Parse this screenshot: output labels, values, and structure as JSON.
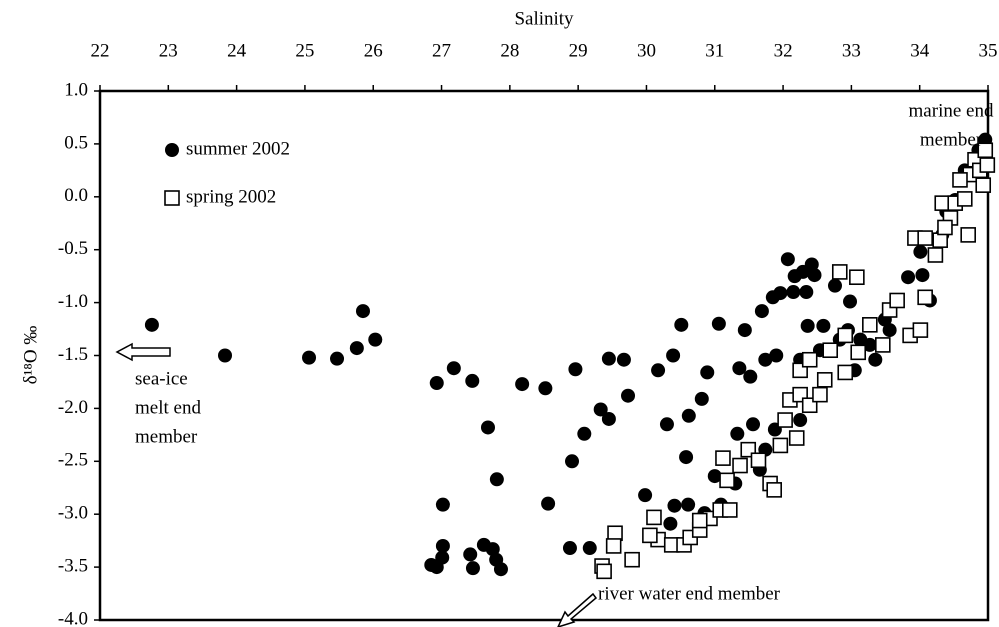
{
  "chart_data": {
    "type": "scatter",
    "x_label": "Salinity",
    "y_label": "δ¹⁸O ‰",
    "xlim": [
      22,
      35
    ],
    "xticks": [
      22,
      23,
      24,
      25,
      26,
      27,
      28,
      29,
      30,
      31,
      32,
      33,
      34,
      35
    ],
    "ylim": [
      -4,
      1
    ],
    "yticks": [
      {
        "value": 1,
        "label": "1.0"
      },
      0.5,
      {
        "value": 0,
        "label": "0.0"
      },
      -0.5,
      {
        "value": -1,
        "label": "-1.0"
      },
      -1.5,
      {
        "value": -2,
        "label": "-2.0"
      },
      -2.5,
      {
        "value": -3,
        "label": "-3.0"
      },
      -3.5,
      {
        "value": -4,
        "label": "-4.0"
      }
    ],
    "legend": "upper left",
    "annotations": [
      [
        "marine end",
        "member"
      ],
      [
        "sea-ice",
        "melt end",
        "member"
      ],
      [
        "river water end member"
      ]
    ],
    "series": [
      {
        "name": "summer 2002",
        "marker": "filled-circle",
        "color": "#000000",
        "x": [
          22.76,
          23.83,
          25.06,
          25.47,
          25.76,
          25.85,
          26.03,
          26.93,
          27.18,
          27.45,
          27.68,
          27.81,
          27.02,
          27.02,
          26.85,
          26.93,
          27.01,
          27.42,
          27.46,
          27.62,
          27.75,
          27.8,
          27.87,
          28.18,
          28.52,
          28.56,
          28.88,
          29.17,
          28.91,
          28.96,
          29.09,
          29.33,
          29.45,
          29.45,
          29.67,
          29.73,
          29.98,
          30.17,
          30.39,
          30.3,
          30.51,
          30.58,
          30.62,
          30.81,
          30.89,
          31.06,
          30.35,
          30.41,
          30.61,
          30.85,
          31.09,
          31.0,
          31.3,
          31.44,
          31.33,
          31.36,
          31.52,
          31.56,
          31.69,
          31.74,
          31.9,
          31.85,
          31.96,
          32.07,
          32.17,
          32.15,
          32.29,
          32.34,
          32.42,
          32.46,
          32.36,
          32.59,
          32.76,
          32.98,
          32.95,
          33.13,
          33.35,
          33.49,
          33.83,
          34.01,
          34.04,
          34.15,
          34.33,
          34.39,
          34.52,
          34.66,
          34.86,
          34.96,
          32.1,
          31.88,
          31.74,
          31.66,
          32.25,
          32.54,
          32.83,
          33.05,
          33.27,
          33.56,
          32.25
        ],
        "values": [
          -1.21,
          -1.5,
          -1.52,
          -1.53,
          -1.43,
          -1.08,
          -1.35,
          -1.76,
          -1.62,
          -1.74,
          -2.18,
          -2.67,
          -2.91,
          -3.3,
          -3.48,
          -3.5,
          -3.41,
          -3.38,
          -3.51,
          -3.29,
          -3.33,
          -3.43,
          -3.52,
          -1.77,
          -1.81,
          -2.9,
          -3.32,
          -3.32,
          -2.5,
          -1.63,
          -2.24,
          -2.01,
          -1.53,
          -2.1,
          -1.54,
          -1.88,
          -2.82,
          -1.64,
          -1.5,
          -2.15,
          -1.21,
          -2.46,
          -2.07,
          -1.91,
          -1.66,
          -1.2,
          -3.09,
          -2.92,
          -2.91,
          -2.99,
          -2.91,
          -2.64,
          -2.71,
          -1.26,
          -2.24,
          -1.62,
          -1.7,
          -2.15,
          -1.08,
          -1.54,
          -1.5,
          -0.95,
          -0.91,
          -0.59,
          -0.75,
          -0.9,
          -0.71,
          -0.9,
          -0.64,
          -0.74,
          -1.22,
          -1.22,
          -0.84,
          -0.99,
          -1.26,
          -1.35,
          -1.54,
          -1.16,
          -0.76,
          -0.52,
          -0.74,
          -0.98,
          -0.36,
          -0.14,
          -0.03,
          0.25,
          0.44,
          0.54,
          -1.92,
          -2.2,
          -2.39,
          -2.58,
          -1.54,
          -1.45,
          -1.35,
          -1.64,
          -1.4,
          -1.26,
          -2.11
        ]
      },
      {
        "name": "spring 2002",
        "marker": "open-square",
        "color": "#000000",
        "x": [
          29.35,
          29.38,
          29.54,
          29.52,
          29.79,
          30.11,
          30.17,
          30.37,
          30.55,
          30.64,
          30.78,
          30.93,
          31.08,
          31.12,
          31.18,
          31.37,
          31.49,
          31.64,
          31.81,
          31.87,
          31.96,
          32.03,
          32.2,
          32.1,
          32.25,
          32.39,
          32.54,
          32.61,
          32.25,
          32.39,
          32.69,
          32.91,
          32.91,
          33.1,
          32.83,
          33.08,
          33.27,
          33.46,
          33.56,
          33.67,
          33.86,
          34.01,
          34.08,
          33.93,
          34.08,
          34.23,
          34.3,
          34.33,
          34.45,
          34.37,
          34.52,
          34.71,
          34.66,
          34.74,
          34.81,
          34.88,
          34.96,
          34.93,
          34.99,
          34.59,
          31.22,
          30.78,
          30.05
        ],
        "values": [
          -3.49,
          -3.54,
          -3.18,
          -3.3,
          -3.43,
          -3.03,
          -3.24,
          -3.29,
          -3.29,
          -3.22,
          -3.15,
          -3.04,
          -2.96,
          -2.47,
          -2.68,
          -2.54,
          -2.39,
          -2.49,
          -2.71,
          -2.77,
          -2.35,
          -2.11,
          -2.28,
          -1.92,
          -1.87,
          -1.97,
          -1.87,
          -1.73,
          -1.64,
          -1.54,
          -1.45,
          -1.31,
          -1.66,
          -1.47,
          -0.71,
          -0.76,
          -1.21,
          -1.4,
          -1.07,
          -0.98,
          -1.31,
          -1.26,
          -0.95,
          -0.39,
          -0.39,
          -0.55,
          -0.41,
          -0.06,
          -0.2,
          -0.29,
          -0.06,
          -0.36,
          -0.02,
          0.21,
          0.35,
          0.25,
          0.44,
          0.11,
          0.3,
          0.16,
          -2.96,
          -3.06,
          -3.2
        ]
      }
    ]
  }
}
